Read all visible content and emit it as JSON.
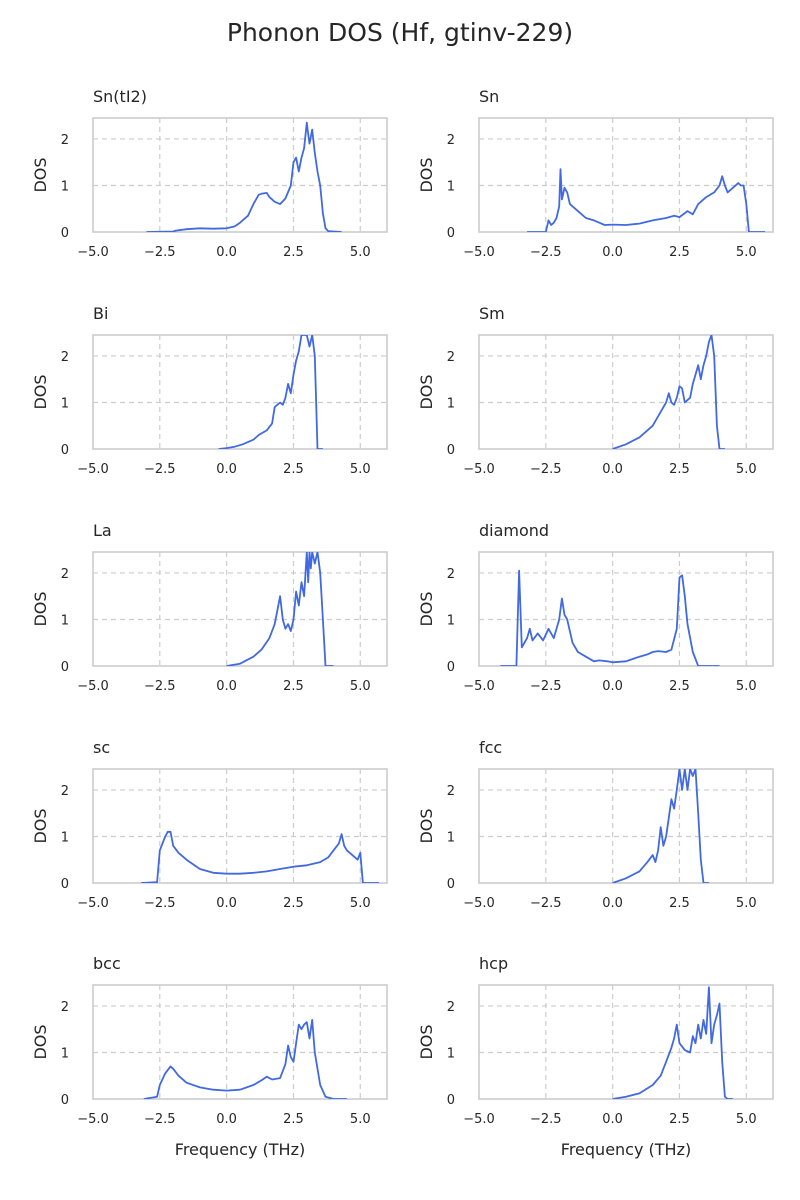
{
  "figure": {
    "title": "Phonon DOS (Hf, gtinv-229)"
  },
  "style": {
    "line_color": "#4169E1",
    "grid_color": "#cccccc",
    "frame_color": "#cccccc",
    "text_color": "#262626"
  },
  "chart_data": [
    {
      "type": "line",
      "title": "Sn(tI2)",
      "xlabel": "",
      "ylabel": "DOS",
      "xlim": [
        -5,
        6
      ],
      "ylim": [
        0,
        2.45
      ],
      "xticks": [
        -5,
        -2.5,
        0,
        2.5,
        5
      ],
      "xtick_labels": [
        "−5.0",
        "−2.5",
        "0.0",
        "2.5",
        "5.0"
      ],
      "yticks": [
        0,
        1,
        2
      ],
      "ytick_labels": [
        "0",
        "1",
        "2"
      ],
      "grid": true,
      "x": [
        -3.0,
        -2.0,
        -1.9,
        -1.5,
        -1.0,
        -0.5,
        0.0,
        0.3,
        0.5,
        0.8,
        1.0,
        1.2,
        1.3,
        1.5,
        1.6,
        1.8,
        2.0,
        2.2,
        2.4,
        2.5,
        2.6,
        2.7,
        2.8,
        2.9,
        3.0,
        3.05,
        3.1,
        3.2,
        3.3,
        3.4,
        3.5,
        3.6,
        3.7,
        3.8,
        4.3
      ],
      "y": [
        0,
        0.01,
        0.03,
        0.06,
        0.08,
        0.07,
        0.08,
        0.12,
        0.2,
        0.35,
        0.6,
        0.8,
        0.82,
        0.84,
        0.75,
        0.65,
        0.6,
        0.72,
        1.0,
        1.5,
        1.6,
        1.3,
        1.6,
        1.8,
        2.35,
        2.1,
        1.9,
        2.2,
        1.7,
        1.3,
        1.0,
        0.4,
        0.08,
        0.02,
        0
      ]
    },
    {
      "type": "line",
      "title": "Sn",
      "xlabel": "",
      "ylabel": "DOS",
      "xlim": [
        -5,
        6
      ],
      "ylim": [
        0,
        2.45
      ],
      "xticks": [
        -5,
        -2.5,
        0,
        2.5,
        5
      ],
      "xtick_labels": [
        "−5.0",
        "−2.5",
        "0.0",
        "2.5",
        "5.0"
      ],
      "yticks": [
        0,
        1,
        2
      ],
      "ytick_labels": [
        "0",
        "1",
        "2"
      ],
      "grid": true,
      "x": [
        -3.2,
        -2.5,
        -2.4,
        -2.3,
        -2.2,
        -2.1,
        -2.0,
        -1.95,
        -1.9,
        -1.8,
        -1.7,
        -1.6,
        -1.4,
        -1.2,
        -1.0,
        -0.7,
        -0.5,
        -0.3,
        0.0,
        0.5,
        1.0,
        1.5,
        2.0,
        2.3,
        2.5,
        2.8,
        3.0,
        3.2,
        3.5,
        3.8,
        4.0,
        4.1,
        4.2,
        4.3,
        4.5,
        4.7,
        4.8,
        4.9,
        5.0,
        5.1,
        5.7
      ],
      "y": [
        0,
        0,
        0.25,
        0.15,
        0.2,
        0.3,
        0.55,
        1.35,
        0.7,
        0.95,
        0.85,
        0.6,
        0.5,
        0.4,
        0.3,
        0.25,
        0.2,
        0.15,
        0.16,
        0.15,
        0.18,
        0.25,
        0.3,
        0.35,
        0.32,
        0.45,
        0.38,
        0.6,
        0.75,
        0.85,
        1.0,
        1.2,
        1.0,
        0.85,
        0.95,
        1.05,
        1.0,
        1.0,
        0.6,
        0.0,
        0
      ]
    },
    {
      "type": "line",
      "title": "Bi",
      "xlabel": "",
      "ylabel": "DOS",
      "xlim": [
        -5,
        6
      ],
      "ylim": [
        0,
        2.45
      ],
      "xticks": [
        -5,
        -2.5,
        0,
        2.5,
        5
      ],
      "xtick_labels": [
        "−5.0",
        "−2.5",
        "0.0",
        "2.5",
        "5.0"
      ],
      "yticks": [
        0,
        1,
        2
      ],
      "ytick_labels": [
        "0",
        "1",
        "2"
      ],
      "grid": true,
      "x": [
        -0.3,
        0.0,
        0.3,
        0.6,
        1.0,
        1.2,
        1.5,
        1.7,
        1.8,
        2.0,
        2.1,
        2.2,
        2.3,
        2.4,
        2.5,
        2.6,
        2.7,
        2.8,
        2.9,
        3.0,
        3.1,
        3.2,
        3.3,
        3.4,
        3.6
      ],
      "y": [
        0,
        0.02,
        0.05,
        0.1,
        0.2,
        0.3,
        0.4,
        0.55,
        0.9,
        1.0,
        0.95,
        1.1,
        1.4,
        1.2,
        1.6,
        1.9,
        2.1,
        2.45,
        2.45,
        2.45,
        2.2,
        2.45,
        2.0,
        0.0,
        0
      ]
    },
    {
      "type": "line",
      "title": "Sm",
      "xlabel": "",
      "ylabel": "DOS",
      "xlim": [
        -5,
        6
      ],
      "ylim": [
        0,
        2.45
      ],
      "xticks": [
        -5,
        -2.5,
        0,
        2.5,
        5
      ],
      "xtick_labels": [
        "−5.0",
        "−2.5",
        "0.0",
        "2.5",
        "5.0"
      ],
      "yticks": [
        0,
        1,
        2
      ],
      "ytick_labels": [
        "0",
        "1",
        "2"
      ],
      "grid": true,
      "x": [
        0.0,
        0.5,
        1.0,
        1.5,
        1.8,
        2.0,
        2.1,
        2.2,
        2.3,
        2.4,
        2.5,
        2.6,
        2.7,
        2.8,
        2.9,
        3.0,
        3.1,
        3.2,
        3.3,
        3.4,
        3.5,
        3.6,
        3.7,
        3.8,
        3.9,
        4.0,
        4.2
      ],
      "y": [
        0,
        0.1,
        0.25,
        0.5,
        0.8,
        1.0,
        1.2,
        1.0,
        0.95,
        1.1,
        1.35,
        1.3,
        1.0,
        1.05,
        1.1,
        1.4,
        1.6,
        1.8,
        1.5,
        1.8,
        2.0,
        2.3,
        2.45,
        2.0,
        0.5,
        0.0,
        0
      ]
    },
    {
      "type": "line",
      "title": "La",
      "xlabel": "",
      "ylabel": "DOS",
      "xlim": [
        -5,
        6
      ],
      "ylim": [
        0,
        2.45
      ],
      "xticks": [
        -5,
        -2.5,
        0,
        2.5,
        5
      ],
      "xtick_labels": [
        "−5.0",
        "−2.5",
        "0.0",
        "2.5",
        "5.0"
      ],
      "yticks": [
        0,
        1,
        2
      ],
      "ytick_labels": [
        "0",
        "1",
        "2"
      ],
      "grid": true,
      "x": [
        0.0,
        0.5,
        1.0,
        1.3,
        1.6,
        1.8,
        1.9,
        2.0,
        2.1,
        2.2,
        2.3,
        2.4,
        2.5,
        2.6,
        2.7,
        2.8,
        2.9,
        3.0,
        3.05,
        3.1,
        3.15,
        3.2,
        3.3,
        3.4,
        3.5,
        3.6,
        3.7,
        3.8,
        4.0
      ],
      "y": [
        0,
        0.05,
        0.2,
        0.35,
        0.6,
        0.9,
        1.2,
        1.5,
        1.0,
        0.8,
        0.9,
        0.75,
        1.0,
        1.6,
        1.3,
        1.8,
        1.5,
        2.45,
        1.8,
        2.45,
        2.1,
        2.45,
        2.2,
        2.45,
        2.0,
        1.0,
        0.0,
        0.0,
        0
      ]
    },
    {
      "type": "line",
      "title": "diamond",
      "xlabel": "",
      "ylabel": "DOS",
      "xlim": [
        -5,
        6
      ],
      "ylim": [
        0,
        2.45
      ],
      "xticks": [
        -5,
        -2.5,
        0,
        2.5,
        5
      ],
      "xtick_labels": [
        "−5.0",
        "−2.5",
        "0.0",
        "2.5",
        "5.0"
      ],
      "yticks": [
        0,
        1,
        2
      ],
      "ytick_labels": [
        "0",
        "1",
        "2"
      ],
      "grid": true,
      "x": [
        -4.2,
        -3.6,
        -3.5,
        -3.4,
        -3.2,
        -3.1,
        -3.0,
        -2.8,
        -2.6,
        -2.4,
        -2.2,
        -2.0,
        -1.9,
        -1.8,
        -1.7,
        -1.5,
        -1.3,
        -1.0,
        -0.7,
        -0.5,
        -0.2,
        0.0,
        0.5,
        1.0,
        1.3,
        1.5,
        1.7,
        2.0,
        2.2,
        2.4,
        2.5,
        2.6,
        2.7,
        2.8,
        3.0,
        3.2,
        3.5,
        4.0
      ],
      "y": [
        0,
        0,
        2.05,
        0.4,
        0.6,
        0.8,
        0.55,
        0.7,
        0.55,
        0.8,
        0.6,
        1.0,
        1.45,
        1.1,
        1.0,
        0.5,
        0.3,
        0.2,
        0.1,
        0.12,
        0.1,
        0.08,
        0.1,
        0.2,
        0.25,
        0.3,
        0.32,
        0.3,
        0.35,
        0.8,
        1.9,
        1.95,
        1.5,
        0.9,
        0.3,
        0.0,
        0.0,
        0
      ]
    },
    {
      "type": "line",
      "title": "sc",
      "xlabel": "",
      "ylabel": "DOS",
      "xlim": [
        -5,
        6
      ],
      "ylim": [
        0,
        2.45
      ],
      "xticks": [
        -5,
        -2.5,
        0,
        2.5,
        5
      ],
      "xtick_labels": [
        "−5.0",
        "−2.5",
        "0.0",
        "2.5",
        "5.0"
      ],
      "yticks": [
        0,
        1,
        2
      ],
      "ytick_labels": [
        "0",
        "1",
        "2"
      ],
      "grid": true,
      "x": [
        -3.2,
        -2.6,
        -2.5,
        -2.3,
        -2.2,
        -2.1,
        -2.0,
        -1.8,
        -1.5,
        -1.0,
        -0.5,
        0.0,
        0.5,
        1.0,
        1.5,
        2.0,
        2.5,
        3.0,
        3.5,
        3.8,
        4.0,
        4.2,
        4.3,
        4.4,
        4.5,
        4.7,
        4.9,
        5.0,
        5.1,
        5.7
      ],
      "y": [
        0,
        0.02,
        0.7,
        1.0,
        1.1,
        1.1,
        0.8,
        0.65,
        0.5,
        0.3,
        0.22,
        0.2,
        0.2,
        0.22,
        0.25,
        0.3,
        0.35,
        0.38,
        0.45,
        0.55,
        0.7,
        0.85,
        1.05,
        0.8,
        0.7,
        0.6,
        0.5,
        0.65,
        0.0,
        0
      ]
    },
    {
      "type": "line",
      "title": "fcc",
      "xlabel": "",
      "ylabel": "DOS",
      "xlim": [
        -5,
        6
      ],
      "ylim": [
        0,
        2.45
      ],
      "xticks": [
        -5,
        -2.5,
        0,
        2.5,
        5
      ],
      "xtick_labels": [
        "−5.0",
        "−2.5",
        "0.0",
        "2.5",
        "5.0"
      ],
      "yticks": [
        0,
        1,
        2
      ],
      "ytick_labels": [
        "0",
        "1",
        "2"
      ],
      "grid": true,
      "x": [
        0.0,
        0.5,
        1.0,
        1.3,
        1.5,
        1.6,
        1.7,
        1.8,
        1.9,
        2.0,
        2.1,
        2.2,
        2.3,
        2.4,
        2.5,
        2.6,
        2.7,
        2.8,
        2.9,
        3.0,
        3.1,
        3.2,
        3.3,
        3.4,
        3.6
      ],
      "y": [
        0,
        0.1,
        0.25,
        0.45,
        0.6,
        0.45,
        0.7,
        1.2,
        0.8,
        1.0,
        1.4,
        1.8,
        1.6,
        2.0,
        2.45,
        2.0,
        2.45,
        2.0,
        2.45,
        2.3,
        2.45,
        1.5,
        0.5,
        0.0,
        0
      ]
    },
    {
      "type": "line",
      "title": "bcc",
      "xlabel": "Frequency (THz)",
      "ylabel": "DOS",
      "xlim": [
        -5,
        6
      ],
      "ylim": [
        0,
        2.45
      ],
      "xticks": [
        -5,
        -2.5,
        0,
        2.5,
        5
      ],
      "xtick_labels": [
        "−5.0",
        "−2.5",
        "0.0",
        "2.5",
        "5.0"
      ],
      "yticks": [
        0,
        1,
        2
      ],
      "ytick_labels": [
        "0",
        "1",
        "2"
      ],
      "grid": true,
      "x": [
        -3.1,
        -2.6,
        -2.5,
        -2.3,
        -2.1,
        -2.0,
        -1.8,
        -1.5,
        -1.0,
        -0.5,
        0.0,
        0.5,
        1.0,
        1.3,
        1.5,
        1.7,
        2.0,
        2.2,
        2.3,
        2.4,
        2.5,
        2.6,
        2.7,
        2.8,
        2.9,
        3.0,
        3.1,
        3.2,
        3.3,
        3.5,
        3.7,
        4.0,
        4.5
      ],
      "y": [
        0,
        0.05,
        0.3,
        0.55,
        0.7,
        0.65,
        0.5,
        0.35,
        0.25,
        0.2,
        0.18,
        0.2,
        0.3,
        0.4,
        0.48,
        0.42,
        0.45,
        0.75,
        1.15,
        0.9,
        0.8,
        1.2,
        1.6,
        1.5,
        1.6,
        1.65,
        1.3,
        1.7,
        1.0,
        0.3,
        0.05,
        0.0,
        0
      ]
    },
    {
      "type": "line",
      "title": "hcp",
      "xlabel": "Frequency (THz)",
      "ylabel": "DOS",
      "xlim": [
        -5,
        6
      ],
      "ylim": [
        0,
        2.45
      ],
      "xticks": [
        -5,
        -2.5,
        0,
        2.5,
        5
      ],
      "xtick_labels": [
        "−5.0",
        "−2.5",
        "0.0",
        "2.5",
        "5.0"
      ],
      "yticks": [
        0,
        1,
        2
      ],
      "ytick_labels": [
        "0",
        "1",
        "2"
      ],
      "grid": true,
      "x": [
        0.0,
        0.5,
        1.0,
        1.5,
        1.8,
        2.0,
        2.2,
        2.3,
        2.4,
        2.5,
        2.7,
        2.9,
        3.0,
        3.1,
        3.2,
        3.3,
        3.4,
        3.5,
        3.6,
        3.7,
        3.8,
        3.9,
        4.0,
        4.1,
        4.2,
        4.3,
        4.5
      ],
      "y": [
        0,
        0.05,
        0.12,
        0.3,
        0.5,
        0.8,
        1.1,
        1.3,
        1.6,
        1.2,
        1.05,
        1.0,
        1.35,
        1.2,
        1.6,
        1.3,
        1.7,
        1.4,
        2.4,
        1.2,
        1.6,
        1.8,
        2.05,
        0.8,
        0.05,
        0.0,
        0
      ]
    }
  ]
}
